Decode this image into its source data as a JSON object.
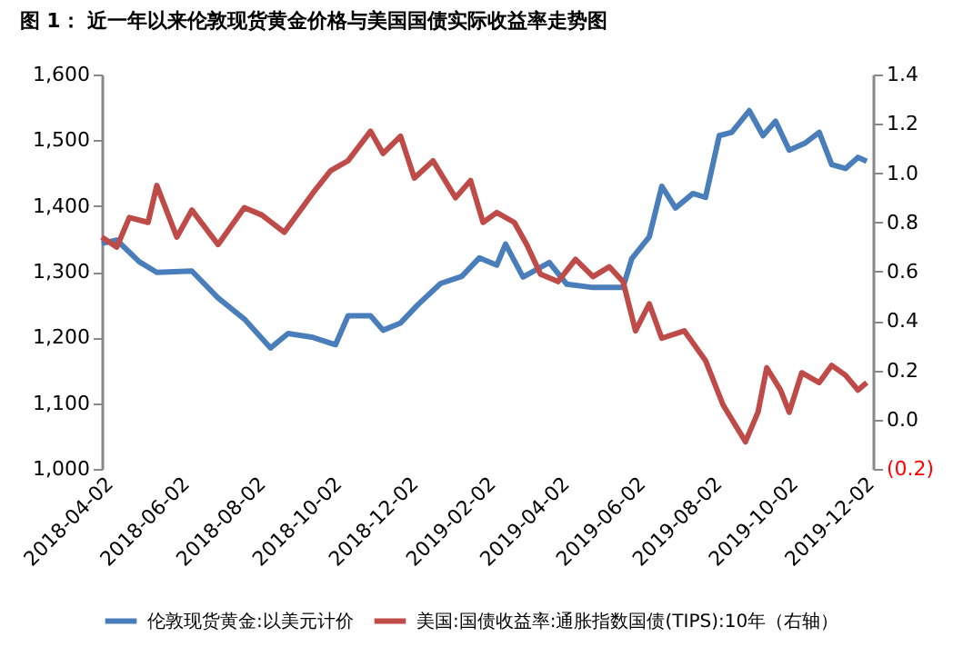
{
  "chart_data": {
    "type": "line",
    "title": "图 1： 近一年以来伦敦现货黄金价格与美国国债实际收益率走势图",
    "xlim": [
      "2018-04-02",
      "2019-12-10"
    ],
    "xticks": [
      "2018-04-02",
      "2018-06-02",
      "2018-08-02",
      "2018-10-02",
      "2018-12-02",
      "2019-02-02",
      "2019-04-02",
      "2019-06-02",
      "2019-08-02",
      "2019-10-02",
      "2019-12-02"
    ],
    "ylim": [
      1000,
      1600
    ],
    "yticks": [
      {
        "value": 1000,
        "label": "1,000"
      },
      {
        "value": 1100,
        "label": "1,100"
      },
      {
        "value": 1200,
        "label": "1,200"
      },
      {
        "value": 1300,
        "label": "1,300"
      },
      {
        "value": 1400,
        "label": "1,400"
      },
      {
        "value": 1500,
        "label": "1,500"
      },
      {
        "value": 1600,
        "label": "1,600"
      }
    ],
    "y2lim": [
      -0.2,
      1.4
    ],
    "y2ticks": [
      {
        "value": -0.2,
        "label": "(0.2)"
      },
      {
        "value": 0,
        "label": "0.0"
      },
      {
        "value": 0.2,
        "label": "0.2"
      },
      {
        "value": 0.4,
        "label": "0.4"
      },
      {
        "value": 0.6,
        "label": "0.6"
      },
      {
        "value": 0.8,
        "label": "0.8"
      },
      {
        "value": 1.0,
        "label": "1.0"
      },
      {
        "value": 1.2,
        "label": "1.2"
      },
      {
        "value": 1.4,
        "label": "1.4"
      }
    ],
    "grid": false,
    "legend": "bottom",
    "marker": "none",
    "line_style": "solid",
    "series": [
      {
        "name": "伦敦现货黄金:以美元计价",
        "color": "#4a7ebb",
        "x": [
          "2018-04-02",
          "2018-04-14",
          "2018-05-02",
          "2018-05-16",
          "2018-06-13",
          "2018-07-04",
          "2018-07-25",
          "2018-08-15",
          "2018-08-29",
          "2018-09-18",
          "2018-10-06",
          "2018-10-16",
          "2018-11-03",
          "2018-11-13",
          "2018-11-27",
          "2018-12-11",
          "2018-12-29",
          "2019-01-15",
          "2019-01-29",
          "2019-02-12",
          "2019-02-19",
          "2019-03-05",
          "2019-03-26",
          "2019-04-09",
          "2019-04-30",
          "2019-05-24",
          "2019-05-31",
          "2019-06-14",
          "2019-06-24",
          "2019-07-05",
          "2019-07-19",
          "2019-07-29",
          "2019-08-09",
          "2019-08-19",
          "2019-09-02",
          "2019-09-13",
          "2019-09-23",
          "2019-10-04",
          "2019-10-17",
          "2019-10-28",
          "2019-11-07",
          "2019-11-18",
          "2019-11-28",
          "2019-12-05"
        ],
        "values": [
          1343,
          1348,
          1315,
          1299,
          1301,
          1260,
          1228,
          1184,
          1206,
          1200,
          1189,
          1233,
          1233,
          1211,
          1222,
          1250,
          1282,
          1293,
          1321,
          1310,
          1342,
          1292,
          1314,
          1281,
          1276,
          1276,
          1320,
          1353,
          1430,
          1397,
          1419,
          1413,
          1507,
          1512,
          1545,
          1507,
          1529,
          1485,
          1496,
          1512,
          1463,
          1457,
          1474,
          1468
        ]
      },
      {
        "name": "美国:国债收益率:通胀指数国债(TIPS):10年（右轴）",
        "color": "#be4b48",
        "axis": "y2",
        "x": [
          "2018-04-02",
          "2018-04-14",
          "2018-04-24",
          "2018-05-09",
          "2018-05-16",
          "2018-06-01",
          "2018-06-13",
          "2018-07-04",
          "2018-07-25",
          "2018-08-08",
          "2018-08-26",
          "2018-09-18",
          "2018-10-02",
          "2018-10-16",
          "2018-11-03",
          "2018-11-13",
          "2018-11-27",
          "2018-12-08",
          "2018-12-23",
          "2019-01-10",
          "2019-01-22",
          "2019-02-01",
          "2019-02-12",
          "2019-02-26",
          "2019-03-08",
          "2019-03-19",
          "2019-04-02",
          "2019-04-16",
          "2019-04-30",
          "2019-05-13",
          "2019-05-24",
          "2019-06-03",
          "2019-06-14",
          "2019-06-24",
          "2019-07-12",
          "2019-07-29",
          "2019-08-12",
          "2019-08-30",
          "2019-09-09",
          "2019-09-16",
          "2019-09-27",
          "2019-10-04",
          "2019-10-14",
          "2019-10-28",
          "2019-11-07",
          "2019-11-18",
          "2019-11-28",
          "2019-12-05"
        ],
        "values": [
          0.74,
          0.7,
          0.82,
          0.8,
          0.95,
          0.74,
          0.85,
          0.71,
          0.86,
          0.83,
          0.76,
          0.92,
          1.01,
          1.05,
          1.17,
          1.08,
          1.15,
          0.98,
          1.05,
          0.9,
          0.97,
          0.8,
          0.84,
          0.8,
          0.71,
          0.59,
          0.56,
          0.65,
          0.58,
          0.62,
          0.56,
          0.36,
          0.47,
          0.33,
          0.36,
          0.24,
          0.06,
          -0.09,
          0.03,
          0.21,
          0.12,
          0.03,
          0.19,
          0.15,
          0.22,
          0.18,
          0.12,
          0.15
        ]
      }
    ]
  }
}
